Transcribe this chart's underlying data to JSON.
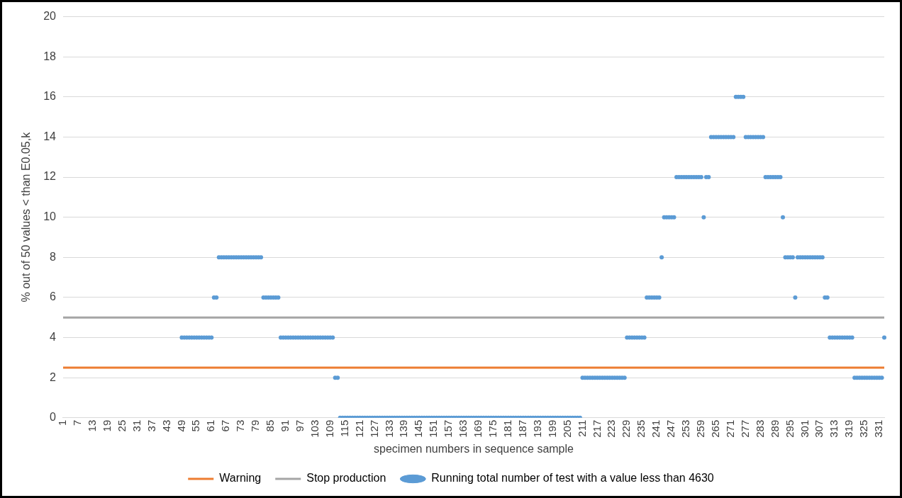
{
  "chart_data": {
    "type": "scatter",
    "xlabel": "specimen numbers in sequence sample",
    "ylabel": "% out of 50 values < than E0.05,k",
    "categories": [
      "1",
      null,
      null,
      null,
      null,
      null,
      "7",
      null,
      null,
      null,
      null,
      null,
      "13",
      null,
      null,
      null,
      null,
      null,
      "19",
      null,
      null,
      null,
      null,
      null,
      "25",
      null,
      null,
      null,
      null,
      null,
      "31",
      null,
      null,
      null,
      null,
      null,
      "37",
      null,
      null,
      null,
      null,
      null,
      "43",
      null,
      null,
      null,
      null,
      null,
      "49",
      null,
      null,
      null,
      null,
      null,
      "55",
      null,
      null,
      null,
      null,
      null,
      "61",
      null,
      null,
      null,
      null,
      null,
      "67",
      null,
      null,
      null,
      null,
      null,
      "73",
      null,
      null,
      null,
      null,
      null,
      "79",
      null,
      null,
      null,
      null,
      null,
      "85",
      null,
      null,
      null,
      null,
      null,
      "91",
      null,
      null,
      null,
      null,
      null,
      "97",
      null,
      null,
      null,
      null,
      null,
      "103",
      null,
      null,
      null,
      null,
      null,
      "109",
      null,
      null,
      null,
      null,
      null,
      "115",
      null,
      null,
      null,
      null,
      null,
      "121",
      null,
      null,
      null,
      null,
      null,
      "127",
      null,
      null,
      null,
      null,
      null,
      "133",
      null,
      null,
      null,
      null,
      null,
      "139",
      null,
      null,
      null,
      null,
      null,
      "145",
      null,
      null,
      null,
      null,
      null,
      "151",
      null,
      null,
      null,
      null,
      null,
      "157",
      null,
      null,
      null,
      null,
      null,
      "163",
      null,
      null,
      null,
      null,
      null,
      "169",
      null,
      null,
      null,
      null,
      null,
      "175",
      null,
      null,
      null,
      null,
      null,
      "181",
      null,
      null,
      null,
      null,
      null,
      "187",
      null,
      null,
      null,
      null,
      null,
      "193",
      null,
      null,
      null,
      null,
      null,
      "199",
      null,
      null,
      null,
      null,
      null,
      "205",
      null,
      null,
      null,
      null,
      null,
      "211",
      null,
      null,
      null,
      null,
      null,
      "217",
      null,
      null,
      null,
      null,
      null,
      "223",
      null,
      null,
      null,
      null,
      null,
      "229",
      null,
      null,
      null,
      null,
      null,
      "235",
      null,
      null,
      null,
      null,
      null,
      "241",
      null,
      null,
      null,
      null,
      null,
      "247",
      null,
      null,
      null,
      null,
      null,
      "253",
      null,
      null,
      null,
      null,
      null,
      "259",
      null,
      null,
      null,
      null,
      null,
      "265",
      null,
      null,
      null,
      null,
      null,
      "271",
      null,
      null,
      null,
      null,
      null,
      "277",
      null,
      null,
      null,
      null,
      null,
      "283",
      null,
      null,
      null,
      null,
      null,
      "289",
      null,
      null,
      null,
      null,
      null,
      "295",
      null,
      null,
      null,
      null,
      null,
      "301",
      null,
      null,
      null,
      null,
      null,
      "307",
      null,
      null,
      null,
      null,
      null,
      "313",
      null,
      null,
      null,
      null,
      null,
      "319",
      null,
      null,
      null,
      null,
      null,
      "325",
      null,
      null,
      null,
      null,
      null,
      "331",
      null,
      null
    ],
    "series": [
      {
        "name": "Running total number of test with a value less than 4630",
        "color": "#5b9bd5",
        "values": [
          null,
          null,
          null,
          null,
          null,
          null,
          null,
          null,
          null,
          null,
          null,
          null,
          null,
          null,
          null,
          null,
          null,
          null,
          null,
          null,
          null,
          null,
          null,
          null,
          null,
          null,
          null,
          null,
          null,
          null,
          null,
          null,
          null,
          null,
          null,
          null,
          null,
          null,
          null,
          null,
          null,
          null,
          null,
          null,
          null,
          null,
          null,
          null,
          4,
          4,
          4,
          4,
          4,
          4,
          4,
          4,
          4,
          4,
          4,
          4,
          4,
          6,
          6,
          8,
          8,
          8,
          8,
          8,
          8,
          8,
          8,
          8,
          8,
          8,
          8,
          8,
          8,
          8,
          8,
          8,
          8,
          6,
          6,
          6,
          6,
          6,
          6,
          6,
          4,
          4,
          4,
          4,
          4,
          4,
          4,
          4,
          4,
          4,
          4,
          4,
          4,
          4,
          4,
          4,
          4,
          4,
          4,
          4,
          4,
          4,
          2,
          2,
          0,
          0,
          0,
          0,
          0,
          0,
          0,
          0,
          0,
          0,
          0,
          0,
          0,
          0,
          0,
          0,
          0,
          0,
          0,
          0,
          0,
          0,
          0,
          0,
          0,
          0,
          0,
          0,
          0,
          0,
          0,
          0,
          0,
          0,
          0,
          0,
          0,
          0,
          0,
          0,
          0,
          0,
          0,
          0,
          0,
          0,
          0,
          0,
          0,
          0,
          0,
          0,
          0,
          0,
          0,
          0,
          0,
          0,
          0,
          0,
          0,
          0,
          0,
          0,
          0,
          0,
          0,
          0,
          0,
          0,
          0,
          0,
          0,
          0,
          0,
          0,
          0,
          0,
          0,
          0,
          0,
          0,
          0,
          0,
          0,
          0,
          0,
          0,
          0,
          0,
          0,
          0,
          0,
          0,
          0,
          0,
          0,
          0,
          2,
          2,
          2,
          2,
          2,
          2,
          2,
          2,
          2,
          2,
          2,
          2,
          2,
          2,
          2,
          2,
          2,
          2,
          4,
          4,
          4,
          4,
          4,
          4,
          4,
          4,
          6,
          6,
          6,
          6,
          6,
          6,
          8,
          10,
          10,
          10,
          10,
          10,
          12,
          12,
          12,
          12,
          12,
          12,
          12,
          12,
          12,
          12,
          12,
          10,
          12,
          12,
          14,
          14,
          14,
          14,
          14,
          14,
          14,
          14,
          14,
          14,
          16,
          16,
          16,
          16,
          14,
          14,
          14,
          14,
          14,
          14,
          14,
          14,
          12,
          12,
          12,
          12,
          12,
          12,
          12,
          10,
          8,
          8,
          8,
          8,
          6,
          8,
          8,
          8,
          8,
          8,
          8,
          8,
          8,
          8,
          8,
          8,
          6,
          6,
          4,
          4,
          4,
          4,
          4,
          4,
          4,
          4,
          4,
          4,
          2,
          2,
          2,
          2,
          2,
          2,
          2,
          2,
          2,
          2,
          2,
          2,
          4
        ]
      }
    ],
    "ref_lines": [
      {
        "axis": "y",
        "value": 2.5,
        "label": "Warning",
        "color": "#ed7d31",
        "line_style": "solid"
      },
      {
        "axis": "y",
        "value": 5,
        "label": "Stop production",
        "color": "#a5a5a5",
        "line_style": "solid"
      }
    ],
    "ylim": [
      0,
      20
    ],
    "yticks": [
      0,
      2,
      4,
      6,
      8,
      10,
      12,
      14,
      16,
      18,
      20
    ],
    "grid": "y",
    "legend": "bottom",
    "marker": "circle"
  }
}
